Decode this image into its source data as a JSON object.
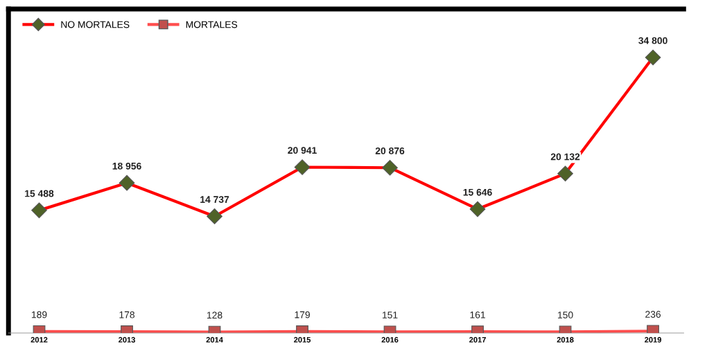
{
  "chart_data": {
    "type": "line",
    "categories": [
      "2012",
      "2013",
      "2014",
      "2015",
      "2016",
      "2017",
      "2018",
      "2019"
    ],
    "series": [
      {
        "name": "NO MORTALES",
        "color": "#ff0000",
        "marker": "diamond",
        "colors": [
          "#4f6228",
          "#4f6228",
          "#4f6228",
          "#4f6228",
          "#4f6228",
          "#4f6228",
          "#4f6228",
          "#4f6228"
        ],
        "values": [
          15488,
          18956,
          14737,
          20941,
          20876,
          15646,
          20132,
          34800
        ],
        "value_labels": [
          "15 488",
          "18 956",
          "14 737",
          "20 941",
          "20 876",
          "15 646",
          "20 132",
          "34 800"
        ]
      },
      {
        "name": "MORTALES",
        "color": "#ff4d4d",
        "marker": "square",
        "colors": [
          "#c0504d",
          "#c0504d",
          "#c0504d",
          "#c0504d",
          "#c0504d",
          "#c0504d",
          "#c0504d",
          "#c0504d"
        ],
        "values": [
          189,
          178,
          128,
          179,
          151,
          161,
          150,
          236
        ],
        "value_labels": [
          "189",
          "178",
          "128",
          "179",
          "151",
          "161",
          "150",
          "236"
        ]
      }
    ],
    "legend": "top left",
    "grid": false,
    "line_style": "solid"
  }
}
